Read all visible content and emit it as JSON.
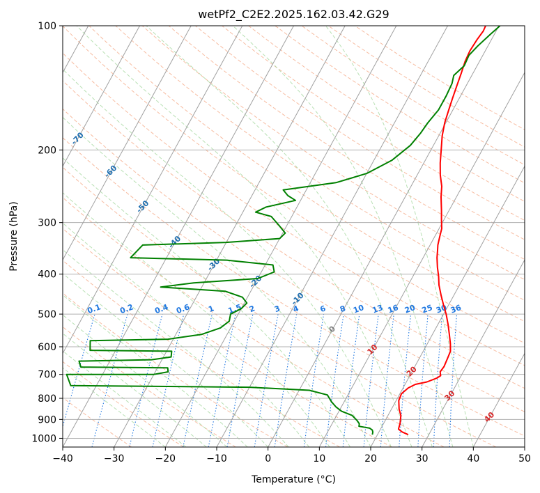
{
  "chart_data": {
    "type": "skew-t",
    "title": "wetPf2_C2E2.2025.162.03.42.G29",
    "xlabel": "Temperature (°C)",
    "ylabel": "Pressure (hPa)",
    "xlim": [
      -40,
      50
    ],
    "ylim": [
      1050,
      100
    ],
    "yscale": "log",
    "x_ticks": [
      -40,
      -30,
      -20,
      -10,
      0,
      10,
      20,
      30,
      40,
      50
    ],
    "x_tick_labels": [
      "−40",
      "−30",
      "−20",
      "−10",
      "0",
      "10",
      "20",
      "30",
      "40",
      "50"
    ],
    "y_ticks": [
      1000,
      900,
      800,
      700,
      600,
      500,
      400,
      300,
      200,
      100
    ],
    "y_tick_labels": [
      "1000",
      "900",
      "800",
      "700",
      "600",
      "500",
      "400",
      "300",
      "200",
      "100"
    ],
    "isotherms_skewed": [
      -100,
      -90,
      -80,
      -70,
      -60,
      -50,
      -40,
      -30,
      -20,
      -10,
      0,
      10,
      20,
      30,
      40
    ],
    "isotherm_label_colors": {
      "below_zero": "#1f6fb0",
      "zero": "#808080",
      "above_zero": "#d62728"
    },
    "mixing_ratio_labels": [
      "0.1",
      "0.2",
      "0.4",
      "0.6",
      "1",
      "1.5",
      "2",
      "3",
      "4",
      "6",
      "8",
      "10",
      "13",
      "16",
      "20",
      "25",
      "30",
      "36"
    ],
    "mixing_ratio_values": [
      0.1,
      0.2,
      0.4,
      0.6,
      1,
      1.5,
      2,
      3,
      4,
      6,
      8,
      10,
      13,
      16,
      20,
      25,
      30,
      36
    ],
    "series": [
      {
        "name": "",
        "kind": "temperature",
        "color": "#ff0000",
        "points": [
          [
            26.0,
            980
          ],
          [
            24.5,
            965
          ],
          [
            23.5,
            950
          ],
          [
            23.2,
            920
          ],
          [
            22.5,
            880
          ],
          [
            21.5,
            850
          ],
          [
            20.5,
            810
          ],
          [
            20.3,
            780
          ],
          [
            21.0,
            755
          ],
          [
            22.0,
            740
          ],
          [
            24.0,
            730
          ],
          [
            25.5,
            715
          ],
          [
            26.0,
            705
          ],
          [
            25.5,
            690
          ],
          [
            25.7,
            670
          ],
          [
            25.5,
            640
          ],
          [
            25.3,
            615
          ],
          [
            24.5,
            590
          ],
          [
            23.3,
            560
          ],
          [
            22.0,
            530
          ],
          [
            20.5,
            500
          ],
          [
            19.0,
            475
          ],
          [
            17.5,
            450
          ],
          [
            16.0,
            425
          ],
          [
            15.0,
            405
          ],
          [
            13.8,
            385
          ],
          [
            12.7,
            365
          ],
          [
            12.0,
            350
          ],
          [
            11.5,
            340
          ],
          [
            11.0,
            325
          ],
          [
            10.5,
            310
          ],
          [
            9.5,
            295
          ],
          [
            8.5,
            280
          ],
          [
            7.0,
            260
          ],
          [
            6.0,
            245
          ],
          [
            4.5,
            230
          ],
          [
            3.2,
            215
          ],
          [
            2.0,
            200
          ],
          [
            0.7,
            185
          ],
          [
            -0.2,
            172
          ],
          [
            -0.8,
            160
          ],
          [
            -1.3,
            150
          ],
          [
            -1.8,
            140
          ],
          [
            -2.3,
            130
          ],
          [
            -2.8,
            122
          ],
          [
            -3.0,
            115
          ],
          [
            -2.8,
            108
          ],
          [
            -2.5,
            103
          ],
          [
            -2.6,
            100
          ]
        ]
      },
      {
        "name": "",
        "kind": "dewpoint",
        "color": "#008000",
        "points": [
          [
            19.0,
            980
          ],
          [
            18.8,
            965
          ],
          [
            18.5,
            955
          ],
          [
            17.8,
            945
          ],
          [
            15.5,
            935
          ],
          [
            15.3,
            922
          ],
          [
            14.5,
            905
          ],
          [
            13.0,
            880
          ],
          [
            10.5,
            860
          ],
          [
            9.0,
            840
          ],
          [
            7.5,
            815
          ],
          [
            6.0,
            785
          ],
          [
            2.0,
            765
          ],
          [
            -10.0,
            752
          ],
          [
            -45.0,
            745
          ],
          [
            -47.0,
            700
          ],
          [
            -30.0,
            700
          ],
          [
            -27.5,
            690
          ],
          [
            -28.0,
            675
          ],
          [
            -45.0,
            672
          ],
          [
            -46.0,
            650
          ],
          [
            -32.0,
            645
          ],
          [
            -28.5,
            635
          ],
          [
            -29.0,
            615
          ],
          [
            -45.0,
            612
          ],
          [
            -46.0,
            580
          ],
          [
            -31.0,
            575
          ],
          [
            -25.0,
            560
          ],
          [
            -22.0,
            540
          ],
          [
            -21.0,
            520
          ],
          [
            -21.5,
            500
          ],
          [
            -20.0,
            485
          ],
          [
            -19.5,
            470
          ],
          [
            -21.0,
            455
          ],
          [
            -25.0,
            440
          ],
          [
            -38.0,
            430
          ],
          [
            -32.0,
            420
          ],
          [
            -20.0,
            410
          ],
          [
            -17.5,
            395
          ],
          [
            -18.5,
            380
          ],
          [
            -28.0,
            370
          ],
          [
            -47.0,
            365
          ],
          [
            -46.0,
            340
          ],
          [
            -30.0,
            335
          ],
          [
            -20.0,
            328
          ],
          [
            -19.5,
            318
          ],
          [
            -21.5,
            305
          ],
          [
            -24.0,
            290
          ],
          [
            -27.5,
            283
          ],
          [
            -26.0,
            275
          ],
          [
            -21.0,
            265
          ],
          [
            -23.0,
            258
          ],
          [
            -24.5,
            250
          ],
          [
            -15.0,
            240
          ],
          [
            -10.0,
            228
          ],
          [
            -6.5,
            212
          ],
          [
            -4.5,
            195
          ],
          [
            -3.8,
            182
          ],
          [
            -3.5,
            172
          ],
          [
            -2.8,
            160
          ],
          [
            -2.8,
            148
          ],
          [
            -3.0,
            138
          ],
          [
            -3.5,
            132
          ],
          [
            -2.5,
            125
          ],
          [
            -2.7,
            118
          ],
          [
            -2.0,
            112
          ],
          [
            -0.8,
            105
          ],
          [
            0.2,
            100
          ]
        ]
      }
    ]
  }
}
